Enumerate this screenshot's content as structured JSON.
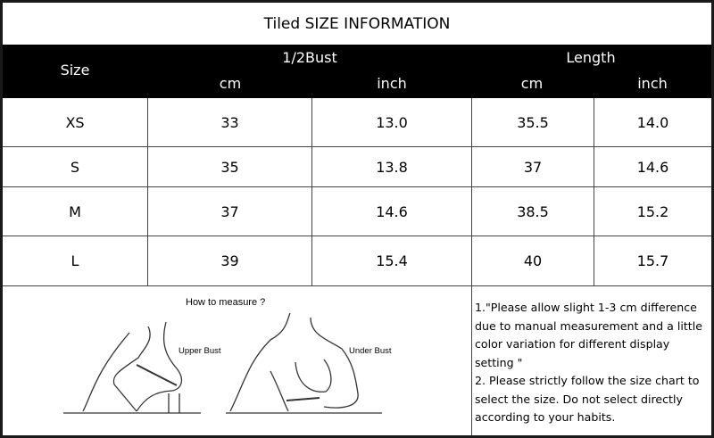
{
  "title": "Tiled SIZE INFORMATION",
  "header": {
    "size": "Size",
    "bust": "1/2Bust",
    "length": "Length",
    "cm": "cm",
    "inch": "inch"
  },
  "rows": [
    {
      "size": "XS",
      "bust_cm": "33",
      "bust_inch": "13.0",
      "length_cm": "35.5",
      "length_inch": "14.0"
    },
    {
      "size": "S",
      "bust_cm": "35",
      "bust_inch": "13.8",
      "length_cm": "37",
      "length_inch": "14.6"
    },
    {
      "size": "M",
      "bust_cm": "37",
      "bust_inch": "14.6",
      "length_cm": "38.5",
      "length_inch": "15.2"
    },
    {
      "size": "L",
      "bust_cm": "39",
      "bust_inch": "15.4",
      "length_cm": "40",
      "length_inch": "15.7"
    }
  ],
  "measure": {
    "title": "How to measure ?",
    "upper_bust": "Upper Bust",
    "under_bust": "Under Bust"
  },
  "notes": [
    "1.\"Please allow slight 1-3 cm difference due to manual measurement and a little color variation for different display setting \"",
    "2. Please strictly follow the size chart to select the size. Do not select directly according to your habits."
  ]
}
